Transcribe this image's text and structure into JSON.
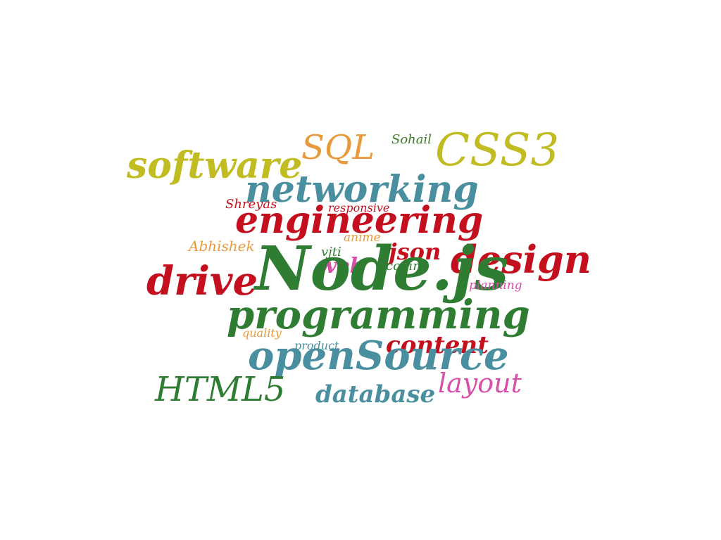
{
  "colors": {
    "olive": "#c0bc22",
    "orange": "#e89a3c",
    "teal": "#4a8fa0",
    "red": "#c4101e",
    "green": "#2e7d32",
    "magenta": "#d64fa8",
    "darkgreen": "#3c7a2a"
  },
  "words": [
    {
      "text": "software",
      "color": "olive"
    },
    {
      "text": "SQL",
      "color": "orange"
    },
    {
      "text": "Sohail",
      "color": "darkgreen"
    },
    {
      "text": "CSS3",
      "color": "olive"
    },
    {
      "text": "networking",
      "color": "teal"
    },
    {
      "text": "Shreyas",
      "color": "red"
    },
    {
      "text": "responsive",
      "color": "red"
    },
    {
      "text": "engineering",
      "color": "red"
    },
    {
      "text": "Abhishek",
      "color": "orange"
    },
    {
      "text": "anime",
      "color": "orange"
    },
    {
      "text": "vjti",
      "color": "green"
    },
    {
      "text": "json",
      "color": "red"
    },
    {
      "text": "coding",
      "color": "green"
    },
    {
      "text": "web",
      "color": "magenta"
    },
    {
      "text": "design",
      "color": "red"
    },
    {
      "text": "drive",
      "color": "red"
    },
    {
      "text": "Node.js",
      "color": "green"
    },
    {
      "text": "planning",
      "color": "magenta"
    },
    {
      "text": "programming",
      "color": "green"
    },
    {
      "text": "quality",
      "color": "orange"
    },
    {
      "text": "product",
      "color": "teal"
    },
    {
      "text": "content",
      "color": "red"
    },
    {
      "text": "openSource",
      "color": "teal"
    },
    {
      "text": "HTML5",
      "color": "green"
    },
    {
      "text": "database",
      "color": "teal"
    },
    {
      "text": "layout",
      "color": "magenta"
    }
  ]
}
